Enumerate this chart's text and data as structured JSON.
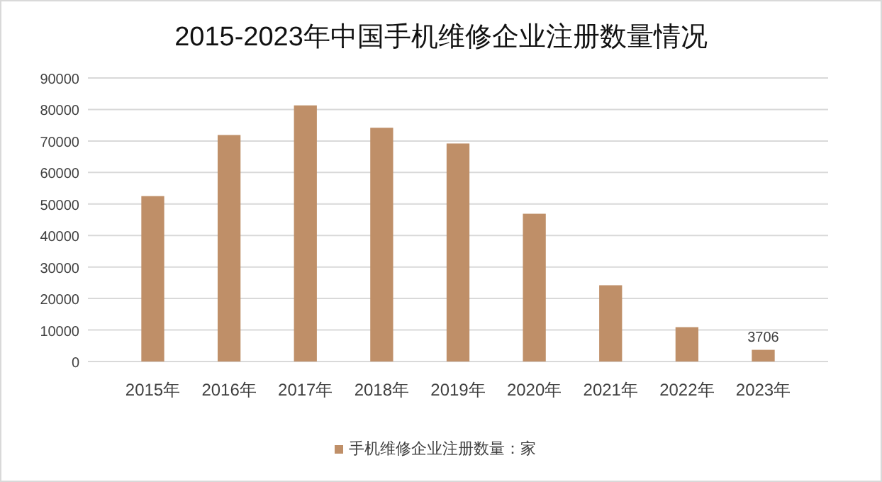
{
  "chart_data": {
    "type": "bar",
    "title": "2015-2023年中国手机维修企业注册数量情况",
    "categories": [
      "2015年",
      "2016年",
      "2017年",
      "2018年",
      "2019年",
      "2020年",
      "2021年",
      "2022年",
      "2023年"
    ],
    "series": [
      {
        "name": "手机维修企业注册数量：家",
        "color": "#bf8f68",
        "values": [
          52500,
          71900,
          81300,
          74200,
          69200,
          46900,
          24200,
          10900,
          3706
        ],
        "value_labels": [
          null,
          null,
          null,
          null,
          null,
          null,
          null,
          null,
          "3706"
        ]
      }
    ],
    "ylim": [
      0,
      90000
    ],
    "yticks": [
      0,
      10000,
      20000,
      30000,
      40000,
      50000,
      60000,
      70000,
      80000,
      90000
    ],
    "grid": "y",
    "legend": "bottom"
  }
}
